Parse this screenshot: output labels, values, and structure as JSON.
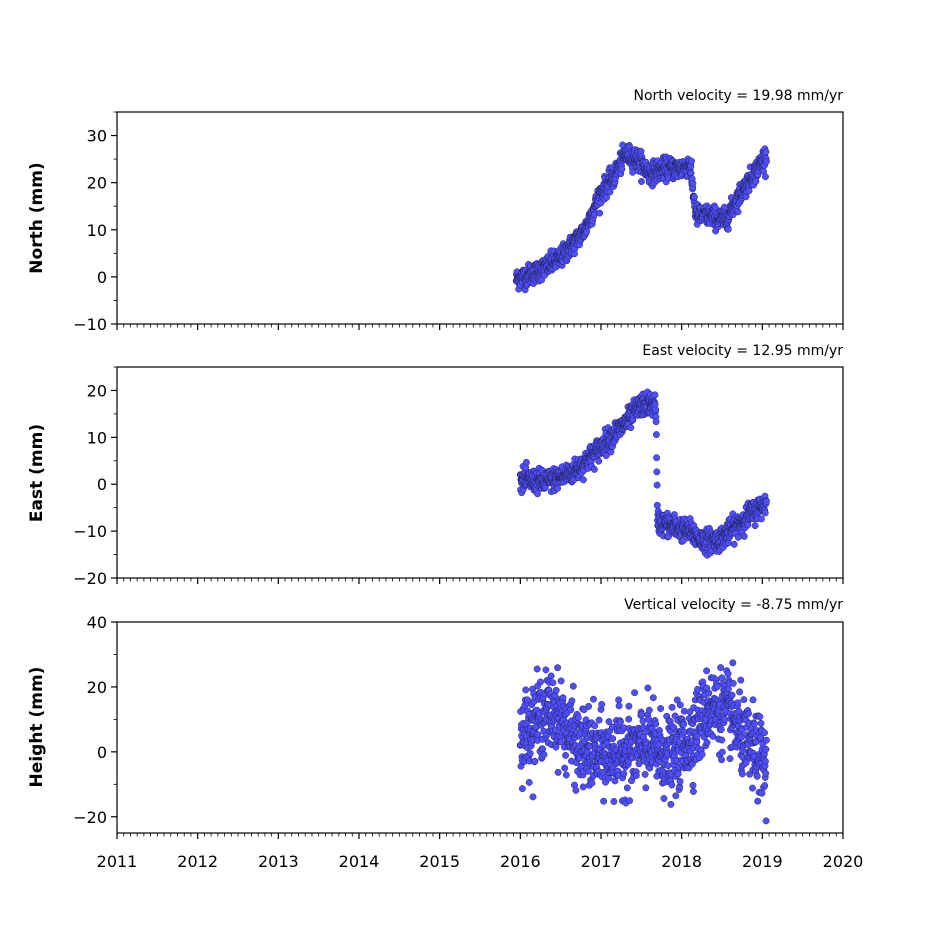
{
  "chart_data": [
    {
      "type": "scatter",
      "title": "North velocity = 19.98 mm/yr",
      "ylabel": "North (mm)",
      "xlim": [
        2011,
        2020
      ],
      "ylim": [
        -10,
        35
      ],
      "yticks": [
        -10,
        0,
        10,
        20,
        30
      ],
      "marker_color": "#4f4fff",
      "trend": [
        [
          2015.95,
          -0.5
        ],
        [
          2016.2,
          1
        ],
        [
          2016.5,
          4
        ],
        [
          2016.8,
          10
        ],
        [
          2017.0,
          18
        ],
        [
          2017.15,
          21
        ],
        [
          2017.3,
          26
        ],
        [
          2017.45,
          25
        ],
        [
          2017.6,
          22
        ],
        [
          2017.8,
          23
        ],
        [
          2018.0,
          23
        ],
        [
          2018.1,
          24
        ],
        [
          2018.18,
          13
        ],
        [
          2018.35,
          13
        ],
        [
          2018.55,
          12
        ],
        [
          2018.7,
          17
        ],
        [
          2018.9,
          22
        ],
        [
          2019.05,
          26
        ]
      ],
      "scatter_sd": 1.1
    },
    {
      "type": "scatter",
      "title": "East velocity = 12.95 mm/yr",
      "ylabel": "East (mm)",
      "xlim": [
        2011,
        2020
      ],
      "ylim": [
        -20,
        25
      ],
      "yticks": [
        -20,
        -10,
        0,
        10,
        20
      ],
      "marker_color": "#4f4fff",
      "trend": [
        [
          2016.0,
          1
        ],
        [
          2016.3,
          0.5
        ],
        [
          2016.5,
          1.5
        ],
        [
          2016.7,
          3
        ],
        [
          2017.0,
          8
        ],
        [
          2017.3,
          13
        ],
        [
          2017.5,
          17
        ],
        [
          2017.68,
          17
        ],
        [
          2017.7,
          -8
        ],
        [
          2017.9,
          -9
        ],
        [
          2018.1,
          -10
        ],
        [
          2018.25,
          -12
        ],
        [
          2018.45,
          -12
        ],
        [
          2018.6,
          -10
        ],
        [
          2018.8,
          -7
        ],
        [
          2019.05,
          -4
        ]
      ],
      "scatter_sd": 1.2
    },
    {
      "type": "scatter",
      "title": "Vertical velocity = -8.75 mm/yr",
      "ylabel": "Height (mm)",
      "xlim": [
        2011,
        2020
      ],
      "ylim": [
        -25,
        40
      ],
      "yticks": [
        -20,
        0,
        20,
        40
      ],
      "xticks": [
        2011,
        2012,
        2013,
        2014,
        2015,
        2016,
        2017,
        2018,
        2019,
        2020
      ],
      "marker_color": "#4f4fff",
      "trend": [
        [
          2016.0,
          5
        ],
        [
          2016.3,
          12
        ],
        [
          2016.45,
          12
        ],
        [
          2016.7,
          2
        ],
        [
          2017.0,
          -1
        ],
        [
          2017.3,
          0
        ],
        [
          2017.6,
          2
        ],
        [
          2017.85,
          -2
        ],
        [
          2018.1,
          4
        ],
        [
          2018.35,
          14
        ],
        [
          2018.6,
          12
        ],
        [
          2018.8,
          2
        ],
        [
          2019.0,
          -2
        ],
        [
          2019.05,
          -6
        ]
      ],
      "scatter_sd": 6
    }
  ]
}
